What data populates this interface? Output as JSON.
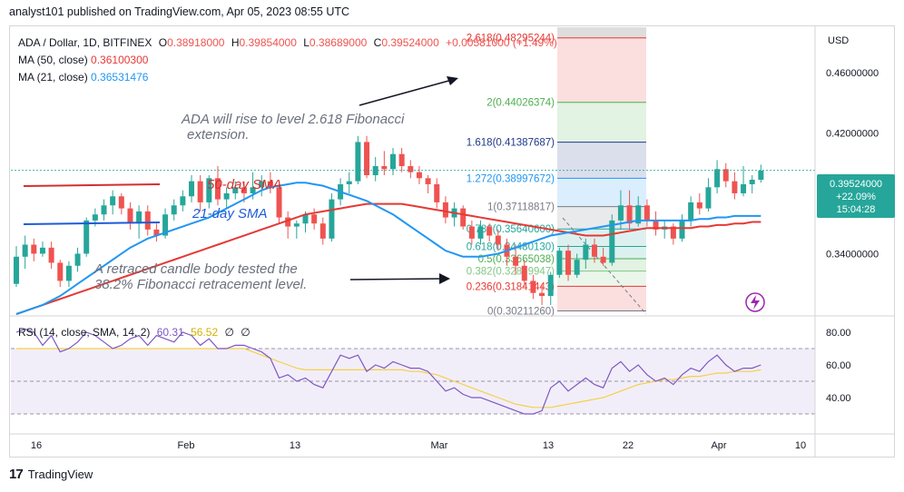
{
  "header": {
    "publisher": "analyst101 published on TradingView.com, Apr 05, 2023 08:55 UTC"
  },
  "legend": {
    "symbol": "ADA / Dollar, 1D, BITFINEX",
    "o_label": "O",
    "o": "0.38918000",
    "h_label": "H",
    "h": "0.39854000",
    "l_label": "L",
    "l": "0.38689000",
    "c_label": "C",
    "c": "0.39524000",
    "change": "+0.00581000 (+1.49%)",
    "ma50_label": "MA (50, close)",
    "ma50": "0.36100300",
    "ma21_label": "MA (21, close)",
    "ma21": "0.36531476"
  },
  "rsi_legend": {
    "label": "RSI (14, close, SMA, 14, 2)",
    "v1": "60.31",
    "v2": "56.52",
    "v3": "∅",
    "v4": "∅"
  },
  "annotations": {
    "rise": "ADA   will rise to level 2.618 Fibonacci",
    "rise2": "extension.",
    "sma50": "50-day SMA",
    "sma21": "21-day SMA",
    "retrace": "A retraced candle body tested the",
    "retrace2": "38.2% Fibonacci retracement level."
  },
  "fib_levels": [
    {
      "label": "2.618(0.48295244)",
      "value": 0.48295244,
      "color": "#e53935"
    },
    {
      "label": "2(0.44026374)",
      "value": 0.44026374,
      "color": "#4caf50"
    },
    {
      "label": "1.618(0.41387687)",
      "value": 0.41387687,
      "color": "#1e3a8a"
    },
    {
      "label": "1.272(0.38997672)",
      "value": 0.38997672,
      "color": "#2196f3"
    },
    {
      "label": "1(0.37118817)",
      "value": 0.37118817,
      "color": "#787b86"
    },
    {
      "label": "0.786(0.35640600)",
      "value": 0.356406,
      "color": "#26a69a"
    },
    {
      "label": "0.618(0.34480130)",
      "value": 0.3448013,
      "color": "#26a69a"
    },
    {
      "label": "0.5(0.33665038)",
      "value": 0.33665038,
      "color": "#4caf50"
    },
    {
      "label": "0.382(0.32849947)",
      "value": 0.32849947,
      "color": "#81c784"
    },
    {
      "label": "0.236(0.31841443)",
      "value": 0.31841443,
      "color": "#e53935"
    },
    {
      "label": "0(0.30211260)",
      "value": 0.3021126,
      "color": "#787b86"
    }
  ],
  "price_axis": {
    "currency": "USD",
    "ticks": [
      "0.46000000",
      "0.42000000",
      "0.34000000"
    ]
  },
  "current_price": {
    "value": "0.39524000",
    "change": "+22.09%",
    "countdown": "15:04:28"
  },
  "rsi_axis": {
    "ticks": [
      "80.00",
      "60.00",
      "40.00"
    ]
  },
  "time_axis": {
    "ticks": [
      "16",
      "Feb",
      "13",
      "Mar",
      "13",
      "22",
      "Apr",
      "10"
    ]
  },
  "footer": {
    "brand": "TradingView"
  },
  "colors": {
    "up": "#26a69a",
    "down": "#ef5350",
    "ma50": "#e53935",
    "ma21": "#2196f3",
    "rsi": "#7e57c2",
    "rsi_ma": "#f5d04a"
  },
  "chart_data": [
    {
      "type": "candlestick",
      "title": "ADA / Dollar, 1D, BITFINEX",
      "ylim": [
        0.3,
        0.49
      ],
      "y_ticks": [
        0.34,
        0.42,
        0.46
      ],
      "x_ticks": [
        "16",
        "Feb",
        "13",
        "Mar",
        "13",
        "22",
        "Apr",
        "10"
      ],
      "series": [
        {
          "name": "ADA / Dollar",
          "ohlc": [
            [
              0.32,
              0.345,
              0.318,
              0.338
            ],
            [
              0.338,
              0.352,
              0.33,
              0.346
            ],
            [
              0.346,
              0.35,
              0.335,
              0.34
            ],
            [
              0.34,
              0.348,
              0.338,
              0.344
            ],
            [
              0.344,
              0.348,
              0.33,
              0.334
            ],
            [
              0.334,
              0.336,
              0.318,
              0.322
            ],
            [
              0.322,
              0.335,
              0.318,
              0.332
            ],
            [
              0.332,
              0.344,
              0.328,
              0.34
            ],
            [
              0.34,
              0.364,
              0.338,
              0.362
            ],
            [
              0.362,
              0.37,
              0.358,
              0.366
            ],
            [
              0.366,
              0.376,
              0.362,
              0.372
            ],
            [
              0.372,
              0.382,
              0.366,
              0.378
            ],
            [
              0.378,
              0.38,
              0.366,
              0.37
            ],
            [
              0.37,
              0.374,
              0.356,
              0.36
            ],
            [
              0.36,
              0.372,
              0.35,
              0.368
            ],
            [
              0.368,
              0.372,
              0.352,
              0.356
            ],
            [
              0.356,
              0.36,
              0.348,
              0.352
            ],
            [
              0.352,
              0.37,
              0.35,
              0.366
            ],
            [
              0.366,
              0.376,
              0.362,
              0.372
            ],
            [
              0.372,
              0.382,
              0.368,
              0.378
            ],
            [
              0.378,
              0.392,
              0.374,
              0.388
            ],
            [
              0.388,
              0.392,
              0.368,
              0.374
            ],
            [
              0.374,
              0.392,
              0.37,
              0.39
            ],
            [
              0.39,
              0.398,
              0.372,
              0.376
            ],
            [
              0.376,
              0.384,
              0.37,
              0.38
            ],
            [
              0.38,
              0.388,
              0.376,
              0.384
            ],
            [
              0.384,
              0.388,
              0.374,
              0.38
            ],
            [
              0.38,
              0.394,
              0.376,
              0.384
            ],
            [
              0.384,
              0.392,
              0.378,
              0.388
            ],
            [
              0.388,
              0.394,
              0.38,
              0.384
            ],
            [
              0.384,
              0.386,
              0.36,
              0.364
            ],
            [
              0.364,
              0.368,
              0.35,
              0.358
            ],
            [
              0.358,
              0.362,
              0.35,
              0.36
            ],
            [
              0.36,
              0.368,
              0.354,
              0.366
            ],
            [
              0.366,
              0.37,
              0.356,
              0.36
            ],
            [
              0.36,
              0.364,
              0.346,
              0.35
            ],
            [
              0.35,
              0.38,
              0.348,
              0.376
            ],
            [
              0.376,
              0.39,
              0.372,
              0.386
            ],
            [
              0.386,
              0.394,
              0.38,
              0.388
            ],
            [
              0.388,
              0.418,
              0.386,
              0.414
            ],
            [
              0.414,
              0.418,
              0.39,
              0.392
            ],
            [
              0.392,
              0.404,
              0.388,
              0.398
            ],
            [
              0.398,
              0.408,
              0.392,
              0.396
            ],
            [
              0.396,
              0.41,
              0.392,
              0.406
            ],
            [
              0.406,
              0.41,
              0.394,
              0.398
            ],
            [
              0.398,
              0.402,
              0.39,
              0.394
            ],
            [
              0.394,
              0.398,
              0.386,
              0.39
            ],
            [
              0.39,
              0.392,
              0.38,
              0.386
            ],
            [
              0.386,
              0.39,
              0.37,
              0.374
            ],
            [
              0.374,
              0.378,
              0.36,
              0.364
            ],
            [
              0.364,
              0.374,
              0.358,
              0.37
            ],
            [
              0.37,
              0.372,
              0.356,
              0.358
            ],
            [
              0.358,
              0.362,
              0.346,
              0.35
            ],
            [
              0.35,
              0.362,
              0.346,
              0.358
            ],
            [
              0.358,
              0.36,
              0.348,
              0.352
            ],
            [
              0.352,
              0.356,
              0.342,
              0.346
            ],
            [
              0.346,
              0.35,
              0.332,
              0.338
            ],
            [
              0.338,
              0.346,
              0.326,
              0.332
            ],
            [
              0.332,
              0.336,
              0.318,
              0.322
            ],
            [
              0.322,
              0.326,
              0.31,
              0.314
            ],
            [
              0.314,
              0.32,
              0.306,
              0.312
            ],
            [
              0.312,
              0.328,
              0.306,
              0.326
            ],
            [
              0.326,
              0.344,
              0.324,
              0.342
            ],
            [
              0.342,
              0.346,
              0.322,
              0.326
            ],
            [
              0.326,
              0.34,
              0.324,
              0.336
            ],
            [
              0.336,
              0.35,
              0.33,
              0.346
            ],
            [
              0.346,
              0.35,
              0.334,
              0.338
            ],
            [
              0.338,
              0.344,
              0.332,
              0.334
            ],
            [
              0.334,
              0.366,
              0.332,
              0.362
            ],
            [
              0.362,
              0.382,
              0.356,
              0.372
            ],
            [
              0.372,
              0.382,
              0.356,
              0.36
            ],
            [
              0.36,
              0.378,
              0.358,
              0.372
            ],
            [
              0.372,
              0.376,
              0.358,
              0.362
            ],
            [
              0.362,
              0.368,
              0.352,
              0.356
            ],
            [
              0.356,
              0.362,
              0.35,
              0.358
            ],
            [
              0.358,
              0.36,
              0.346,
              0.35
            ],
            [
              0.35,
              0.366,
              0.348,
              0.362
            ],
            [
              0.362,
              0.378,
              0.358,
              0.374
            ],
            [
              0.374,
              0.38,
              0.366,
              0.37
            ],
            [
              0.37,
              0.39,
              0.368,
              0.384
            ],
            [
              0.384,
              0.402,
              0.38,
              0.396
            ],
            [
              0.396,
              0.4,
              0.384,
              0.388
            ],
            [
              0.388,
              0.394,
              0.376,
              0.38
            ],
            [
              0.38,
              0.398,
              0.378,
              0.386
            ],
            [
              0.386,
              0.392,
              0.38,
              0.389
            ],
            [
              0.389,
              0.399,
              0.387,
              0.395
            ]
          ]
        },
        {
          "name": "MA (50, close)",
          "values": [
            0.3,
            0.302,
            0.304,
            0.306,
            0.308,
            0.31,
            0.312,
            0.314,
            0.316,
            0.318,
            0.32,
            0.322,
            0.324,
            0.326,
            0.328,
            0.33,
            0.332,
            0.334,
            0.336,
            0.338,
            0.34,
            0.342,
            0.344,
            0.346,
            0.348,
            0.35,
            0.352,
            0.354,
            0.356,
            0.358,
            0.36,
            0.362,
            0.364,
            0.366,
            0.367,
            0.368,
            0.369,
            0.37,
            0.371,
            0.372,
            0.373,
            0.373,
            0.373,
            0.373,
            0.373,
            0.372,
            0.371,
            0.37,
            0.369,
            0.368,
            0.367,
            0.366,
            0.365,
            0.364,
            0.363,
            0.362,
            0.361,
            0.36,
            0.359,
            0.358,
            0.357,
            0.356,
            0.355,
            0.354,
            0.353,
            0.352,
            0.352,
            0.352,
            0.353,
            0.354,
            0.355,
            0.356,
            0.357,
            0.357,
            0.357,
            0.357,
            0.357,
            0.357,
            0.358,
            0.358,
            0.359,
            0.359,
            0.36,
            0.36,
            0.361,
            0.361
          ]
        },
        {
          "name": "MA (21, close)",
          "values": [
            0.3,
            0.302,
            0.304,
            0.306,
            0.309,
            0.312,
            0.316,
            0.32,
            0.324,
            0.328,
            0.332,
            0.336,
            0.34,
            0.344,
            0.347,
            0.35,
            0.352,
            0.354,
            0.356,
            0.358,
            0.36,
            0.362,
            0.364,
            0.367,
            0.37,
            0.373,
            0.376,
            0.379,
            0.382,
            0.384,
            0.385,
            0.386,
            0.387,
            0.387,
            0.386,
            0.385,
            0.383,
            0.381,
            0.379,
            0.377,
            0.375,
            0.372,
            0.369,
            0.366,
            0.362,
            0.358,
            0.354,
            0.35,
            0.346,
            0.342,
            0.34,
            0.338,
            0.338,
            0.338,
            0.339,
            0.34,
            0.342,
            0.344,
            0.346,
            0.348,
            0.35,
            0.352,
            0.353,
            0.354,
            0.355,
            0.356,
            0.357,
            0.358,
            0.359,
            0.36,
            0.361,
            0.362,
            0.362,
            0.362,
            0.362,
            0.362,
            0.362,
            0.362,
            0.363,
            0.363,
            0.364,
            0.364,
            0.365,
            0.365,
            0.365,
            0.365
          ]
        }
      ]
    },
    {
      "type": "line",
      "title": "RSI (14, close, SMA, 14, 2)",
      "ylim": [
        20,
        90
      ],
      "y_ticks": [
        40,
        60,
        80
      ],
      "series": [
        {
          "name": "RSI",
          "values": [
            80,
            82,
            80,
            72,
            78,
            68,
            70,
            74,
            80,
            78,
            74,
            70,
            72,
            76,
            78,
            72,
            78,
            76,
            74,
            80,
            78,
            72,
            76,
            70,
            70,
            72,
            72,
            70,
            68,
            64,
            52,
            54,
            50,
            52,
            48,
            46,
            56,
            66,
            64,
            66,
            56,
            60,
            58,
            62,
            60,
            58,
            58,
            56,
            50,
            44,
            46,
            42,
            40,
            40,
            38,
            36,
            34,
            32,
            30,
            30,
            32,
            46,
            50,
            44,
            48,
            52,
            48,
            46,
            58,
            62,
            56,
            60,
            54,
            50,
            52,
            48,
            54,
            58,
            56,
            62,
            66,
            60,
            56,
            58,
            58,
            60
          ]
        },
        {
          "name": "RSI SMA",
          "values": [
            70,
            70,
            70,
            70,
            70,
            70,
            70,
            70,
            70,
            70,
            70,
            70,
            70,
            70,
            70,
            70,
            70,
            70,
            70,
            70,
            70,
            70,
            70,
            70,
            70,
            70,
            70,
            68,
            66,
            64,
            62,
            60,
            58,
            57,
            57,
            57,
            57,
            57,
            57,
            57,
            57,
            57,
            57,
            57,
            57,
            56,
            56,
            55,
            54,
            52,
            50,
            48,
            46,
            44,
            42,
            40,
            38,
            36,
            35,
            34,
            34,
            34,
            35,
            36,
            37,
            38,
            39,
            40,
            42,
            44,
            46,
            48,
            49,
            50,
            51,
            51,
            52,
            53,
            53,
            54,
            55,
            55,
            56,
            56,
            56,
            57
          ]
        }
      ]
    }
  ]
}
